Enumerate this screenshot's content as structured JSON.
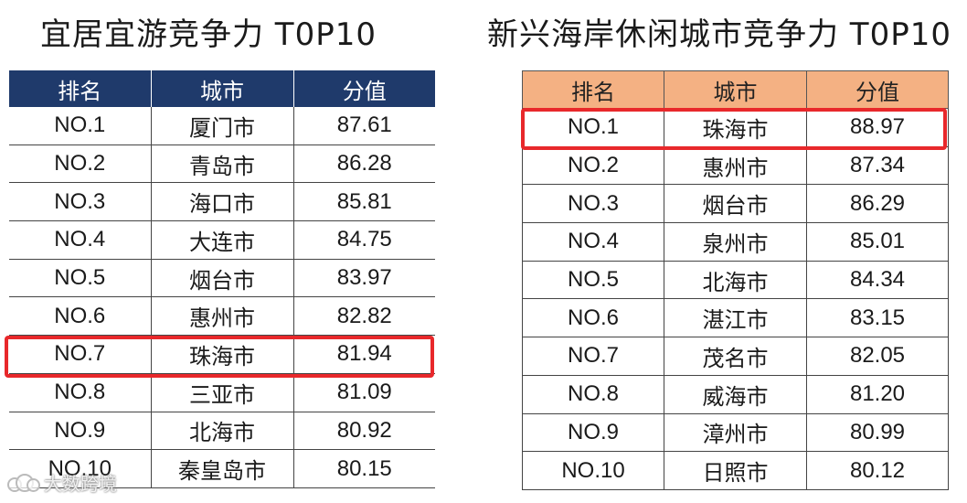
{
  "left": {
    "title": "宜居宜游竞争力 T0P10",
    "headers": [
      "排名",
      "城市",
      "分值"
    ],
    "rows": [
      [
        "NO.1",
        "厦门市",
        "87.61"
      ],
      [
        "NO.2",
        "青岛市",
        "86.28"
      ],
      [
        "NO.3",
        "海口市",
        "85.81"
      ],
      [
        "NO.4",
        "大连市",
        "84.75"
      ],
      [
        "NO.5",
        "烟台市",
        "83.97"
      ],
      [
        "NO.6",
        "惠州市",
        "82.82"
      ],
      [
        "NO.7",
        "珠海市",
        "81.94"
      ],
      [
        "NO.8",
        "三亚市",
        "81.09"
      ],
      [
        "NO.9",
        "北海市",
        "80.92"
      ],
      [
        "NO.10",
        "秦皇岛市",
        "80.15"
      ]
    ],
    "highlighted_rank": "NO.7",
    "header_color": "#1f3a6b"
  },
  "right": {
    "title": "新兴海岸休闲城市竞争力 T0P10",
    "headers": [
      "排名",
      "城市",
      "分值"
    ],
    "rows": [
      [
        "NO.1",
        "珠海市",
        "88.97"
      ],
      [
        "NO.2",
        "惠州市",
        "87.34"
      ],
      [
        "NO.3",
        "烟台市",
        "86.29"
      ],
      [
        "NO.4",
        "泉州市",
        "85.01"
      ],
      [
        "NO.5",
        "北海市",
        "84.34"
      ],
      [
        "NO.6",
        "湛江市",
        "83.15"
      ],
      [
        "NO.7",
        "茂名市",
        "82.05"
      ],
      [
        "NO.8",
        "威海市",
        "81.20"
      ],
      [
        "NO.9",
        "漳州市",
        "80.99"
      ],
      [
        "NO.10",
        "日照市",
        "80.12"
      ]
    ],
    "highlighted_rank": "NO.1",
    "header_color": "#f4b183"
  },
  "highlight_color": "#e8282b",
  "watermark": {
    "text": "大数跨境",
    "icon": "cloud-logo-icon"
  }
}
